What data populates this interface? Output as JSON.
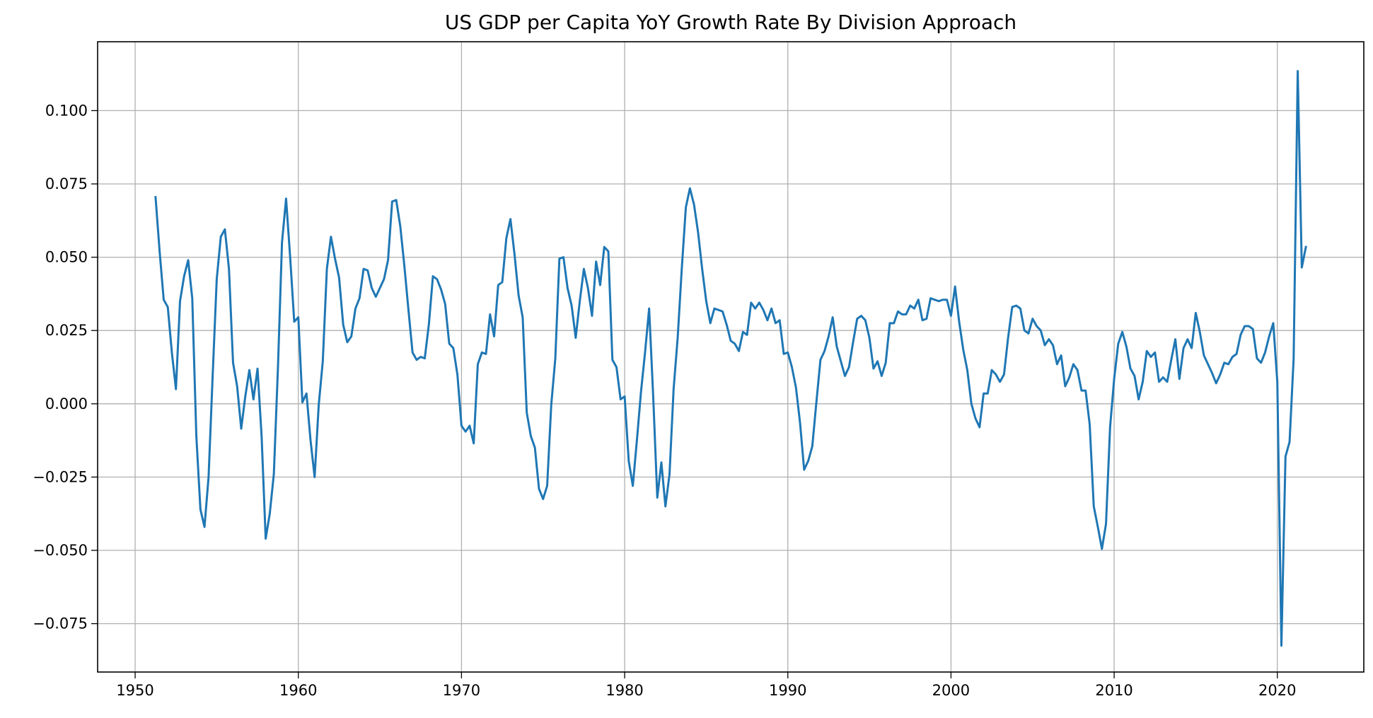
{
  "chart_data": {
    "type": "line",
    "title": "US GDP per Capita YoY Growth Rate By Division Approach",
    "xlabel": "",
    "ylabel": "",
    "xlim": [
      1947.7,
      2025.3
    ],
    "ylim": [
      -0.0915,
      0.1235
    ],
    "grid": true,
    "x_ticks": [
      1950,
      1960,
      1970,
      1980,
      1990,
      2000,
      2010,
      2020
    ],
    "x_tick_labels": [
      "1950",
      "1960",
      "1970",
      "1980",
      "1990",
      "2000",
      "2010",
      "2020"
    ],
    "y_ticks": [
      -0.075,
      -0.05,
      -0.025,
      0.0,
      0.025,
      0.05,
      0.075,
      0.1
    ],
    "y_tick_labels": [
      "−0.075",
      "−0.050",
      "−0.025",
      "0.000",
      "0.025",
      "0.050",
      "0.075",
      "0.100"
    ],
    "series": [
      {
        "color": "#1f77b4",
        "x": [
          1951.25,
          1951.5,
          1951.75,
          1952.0,
          1952.25,
          1952.5,
          1952.75,
          1953.0,
          1953.25,
          1953.5,
          1953.75,
          1954.0,
          1954.25,
          1954.5,
          1954.75,
          1955.0,
          1955.25,
          1955.5,
          1955.75,
          1956.0,
          1956.25,
          1956.5,
          1956.75,
          1957.0,
          1957.25,
          1957.5,
          1957.75,
          1958.0,
          1958.25,
          1958.5,
          1958.75,
          1959.0,
          1959.25,
          1959.5,
          1959.75,
          1960.0,
          1960.25,
          1960.5,
          1960.75,
          1961.0,
          1961.25,
          1961.5,
          1961.75,
          1962.0,
          1962.25,
          1962.5,
          1962.75,
          1963.0,
          1963.25,
          1963.5,
          1963.75,
          1964.0,
          1964.25,
          1964.5,
          1964.75,
          1965.0,
          1965.25,
          1965.5,
          1965.75,
          1966.0,
          1966.25,
          1966.5,
          1966.75,
          1967.0,
          1967.25,
          1967.5,
          1967.75,
          1968.0,
          1968.25,
          1968.5,
          1968.75,
          1969.0,
          1969.25,
          1969.5,
          1969.75,
          1970.0,
          1970.25,
          1970.5,
          1970.75,
          1971.0,
          1971.25,
          1971.5,
          1971.75,
          1972.0,
          1972.25,
          1972.5,
          1972.75,
          1973.0,
          1973.25,
          1973.5,
          1973.75,
          1974.0,
          1974.25,
          1974.5,
          1974.75,
          1975.0,
          1975.25,
          1975.5,
          1975.75,
          1976.0,
          1976.25,
          1976.5,
          1976.75,
          1977.0,
          1977.25,
          1977.5,
          1977.75,
          1978.0,
          1978.25,
          1978.5,
          1978.75,
          1979.0,
          1979.25,
          1979.5,
          1979.75,
          1980.0,
          1980.25,
          1980.5,
          1980.75,
          1981.0,
          1981.25,
          1981.5,
          1981.75,
          1982.0,
          1982.25,
          1982.5,
          1982.75,
          1983.0,
          1983.25,
          1983.5,
          1983.75,
          1984.0,
          1984.25,
          1984.5,
          1984.75,
          1985.0,
          1985.25,
          1985.5,
          1985.75,
          1986.0,
          1986.25,
          1986.5,
          1986.75,
          1987.0,
          1987.25,
          1987.5,
          1987.75,
          1988.0,
          1988.25,
          1988.5,
          1988.75,
          1989.0,
          1989.25,
          1989.5,
          1989.75,
          1990.0,
          1990.25,
          1990.5,
          1990.75,
          1991.0,
          1991.25,
          1991.5,
          1991.75,
          1992.0,
          1992.25,
          1992.5,
          1992.75,
          1993.0,
          1993.25,
          1993.5,
          1993.75,
          1994.0,
          1994.25,
          1994.5,
          1994.75,
          1995.0,
          1995.25,
          1995.5,
          1995.75,
          1996.0,
          1996.25,
          1996.5,
          1996.75,
          1997.0,
          1997.25,
          1997.5,
          1997.75,
          1998.0,
          1998.25,
          1998.5,
          1998.75,
          1999.0,
          1999.25,
          1999.5,
          1999.75,
          2000.0,
          2000.25,
          2000.5,
          2000.75,
          2001.0,
          2001.25,
          2001.5,
          2001.75,
          2002.0,
          2002.25,
          2002.5,
          2002.75,
          2003.0,
          2003.25,
          2003.5,
          2003.75,
          2004.0,
          2004.25,
          2004.5,
          2004.75,
          2005.0,
          2005.25,
          2005.5,
          2005.75,
          2006.0,
          2006.25,
          2006.5,
          2006.75,
          2007.0,
          2007.25,
          2007.5,
          2007.75,
          2008.0,
          2008.25,
          2008.5,
          2008.75,
          2009.0,
          2009.25,
          2009.5,
          2009.75,
          2010.0,
          2010.25,
          2010.5,
          2010.75,
          2011.0,
          2011.25,
          2011.5,
          2011.75,
          2012.0,
          2012.25,
          2012.5,
          2012.75,
          2013.0,
          2013.25,
          2013.5,
          2013.75,
          2014.0,
          2014.25,
          2014.5,
          2014.75,
          2015.0,
          2015.25,
          2015.5,
          2015.75,
          2016.0,
          2016.25,
          2016.5,
          2016.75,
          2017.0,
          2017.25,
          2017.5,
          2017.75,
          2018.0,
          2018.25,
          2018.5,
          2018.75,
          2019.0,
          2019.25,
          2019.5,
          2019.75,
          2020.0,
          2020.25,
          2020.5,
          2020.75,
          2021.0,
          2021.25,
          2021.5,
          2021.75
        ],
        "values": [
          0.0705,
          0.052,
          0.0355,
          0.033,
          0.0175,
          0.005,
          0.035,
          0.0435,
          0.049,
          0.036,
          -0.011,
          -0.036,
          -0.042,
          -0.025,
          0.0095,
          0.0425,
          0.057,
          0.0595,
          0.046,
          0.014,
          0.006,
          -0.0085,
          0.0025,
          0.0115,
          0.0015,
          0.012,
          -0.011,
          -0.046,
          -0.0375,
          -0.024,
          0.012,
          0.055,
          0.07,
          0.05,
          0.028,
          0.0295,
          0.0005,
          0.0035,
          -0.0125,
          -0.025,
          -0.0005,
          0.0145,
          0.046,
          0.057,
          0.0495,
          0.043,
          0.027,
          0.021,
          0.023,
          0.0325,
          0.036,
          0.046,
          0.0455,
          0.0395,
          0.0365,
          0.0395,
          0.0425,
          0.049,
          0.069,
          0.0695,
          0.0605,
          0.047,
          0.032,
          0.0175,
          0.015,
          0.016,
          0.0155,
          0.027,
          0.0435,
          0.0425,
          0.039,
          0.034,
          0.0205,
          0.019,
          0.01,
          -0.0075,
          -0.0095,
          -0.0075,
          -0.0135,
          0.0135,
          0.0175,
          0.017,
          0.0305,
          0.023,
          0.0405,
          0.0415,
          0.0565,
          0.063,
          0.051,
          0.037,
          0.0295,
          -0.003,
          -0.011,
          -0.015,
          -0.029,
          -0.0325,
          -0.028,
          -0.0005,
          0.0155,
          0.0495,
          0.05,
          0.0395,
          0.0335,
          0.0225,
          0.035,
          0.046,
          0.0395,
          0.03,
          0.0485,
          0.0405,
          0.0535,
          0.052,
          0.015,
          0.0125,
          0.0015,
          0.0025,
          -0.0195,
          -0.028,
          -0.0125,
          0.004,
          0.0175,
          0.0325,
          0.0025,
          -0.032,
          -0.02,
          -0.035,
          -0.024,
          0.005,
          0.0225,
          0.046,
          0.067,
          0.0735,
          0.068,
          0.0585,
          0.046,
          0.035,
          0.0275,
          0.0325,
          0.032,
          0.0315,
          0.027,
          0.0215,
          0.0205,
          0.018,
          0.0245,
          0.0235,
          0.0345,
          0.0325,
          0.0345,
          0.032,
          0.0285,
          0.0325,
          0.0275,
          0.0285,
          0.017,
          0.0175,
          0.0125,
          0.0055,
          -0.0065,
          -0.0225,
          -0.0195,
          -0.0145,
          0.0005,
          0.015,
          0.018,
          0.023,
          0.0295,
          0.0195,
          0.0145,
          0.0095,
          0.0125,
          0.021,
          0.029,
          0.03,
          0.0285,
          0.0225,
          0.012,
          0.0145,
          0.0095,
          0.014,
          0.0275,
          0.0275,
          0.0315,
          0.0305,
          0.0305,
          0.0335,
          0.0325,
          0.0355,
          0.0285,
          0.029,
          0.036,
          0.0355,
          0.035,
          0.0355,
          0.0355,
          0.03,
          0.04,
          0.028,
          0.0185,
          0.0115,
          0.0,
          -0.005,
          -0.008,
          0.0035,
          0.0035,
          0.0115,
          0.01,
          0.0075,
          0.01,
          0.0225,
          0.033,
          0.0335,
          0.0325,
          0.025,
          0.024,
          0.029,
          0.0265,
          0.025,
          0.02,
          0.022,
          0.02,
          0.0135,
          0.0165,
          0.006,
          0.009,
          0.0135,
          0.0115,
          0.0045,
          0.0045,
          -0.007,
          -0.035,
          -0.042,
          -0.0495,
          -0.041,
          -0.008,
          0.0085,
          0.0205,
          0.0245,
          0.0195,
          0.012,
          0.0095,
          0.0015,
          0.0075,
          0.018,
          0.016,
          0.0175,
          0.0075,
          0.009,
          0.0075,
          0.015,
          0.022,
          0.0085,
          0.019,
          0.022,
          0.019,
          0.031,
          0.0245,
          0.0165,
          0.0135,
          0.0105,
          0.007,
          0.01,
          0.014,
          0.0135,
          0.016,
          0.017,
          0.0235,
          0.0265,
          0.0265,
          0.0255,
          0.0155,
          0.014,
          0.0175,
          0.023,
          0.0275,
          0.0075,
          -0.0825,
          -0.018,
          -0.013,
          0.0155,
          0.1135,
          0.0465,
          0.0535
        ]
      }
    ]
  }
}
